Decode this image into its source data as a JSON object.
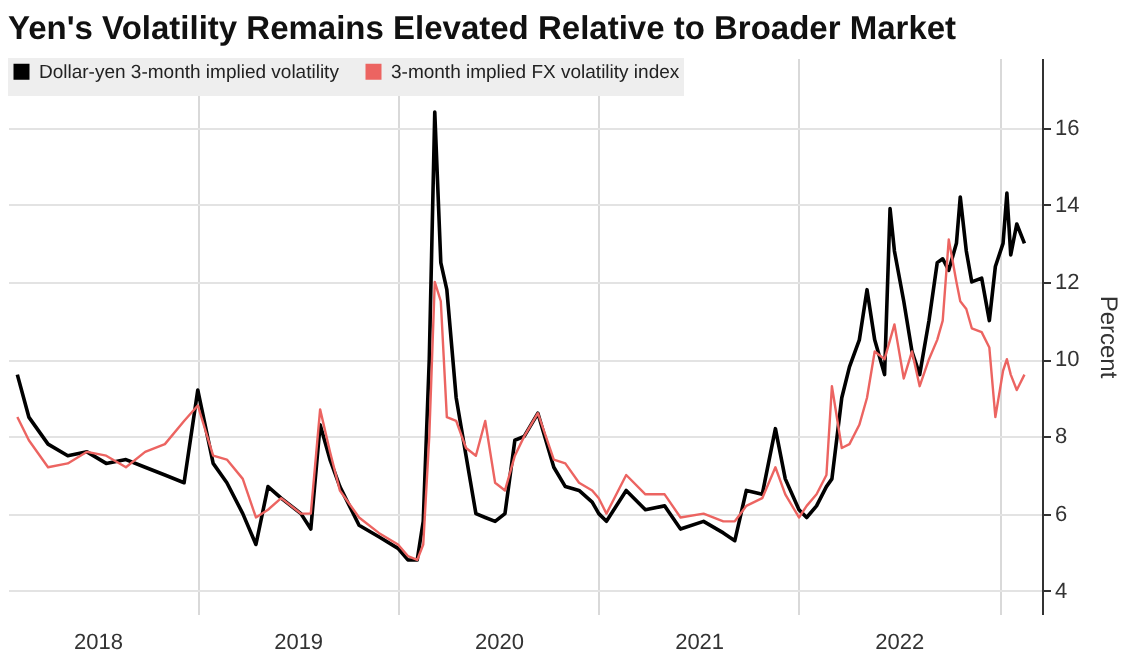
{
  "chart_data": {
    "type": "line",
    "title": "Yen's Volatility Remains Elevated Relative to Broader Market",
    "ylabel": "Percent",
    "x": [
      "2018-02-06",
      "2018-02-27",
      "2018-04-03",
      "2018-05-09",
      "2018-06-13",
      "2018-07-18",
      "2018-08-23",
      "2018-09-27",
      "2018-11-02",
      "2018-12-07",
      "2019-01-01",
      "2019-01-29",
      "2019-02-23",
      "2019-03-24",
      "2019-04-17",
      "2019-05-09",
      "2019-06-02",
      "2019-07-08",
      "2019-07-26",
      "2019-08-12",
      "2019-08-30",
      "2019-09-17",
      "2019-10-22",
      "2019-11-27",
      "2020-01-01",
      "2020-01-19",
      "2020-02-05",
      "2020-02-16",
      "2020-02-27",
      "2020-03-08",
      "2020-03-19",
      "2020-03-30",
      "2020-04-16",
      "2020-05-04",
      "2020-05-22",
      "2020-06-08",
      "2020-06-26",
      "2020-07-14",
      "2020-08-01",
      "2020-08-18",
      "2020-09-12",
      "2020-10-11",
      "2020-11-01",
      "2020-11-26",
      "2020-12-20",
      "2021-01-01",
      "2021-01-15",
      "2021-02-20",
      "2021-03-27",
      "2021-05-01",
      "2021-05-30",
      "2021-07-11",
      "2021-08-16",
      "2021-09-06",
      "2021-09-27",
      "2021-10-26",
      "2021-11-19",
      "2021-12-07",
      "2022-01-01",
      "2022-01-15",
      "2022-02-02",
      "2022-02-20",
      "2022-03-02",
      "2022-03-20",
      "2022-04-03",
      "2022-04-21",
      "2022-05-05",
      "2022-05-19",
      "2022-06-06",
      "2022-06-16",
      "2022-06-24",
      "2022-07-11",
      "2022-07-26",
      "2022-08-09",
      "2022-08-26",
      "2022-09-10",
      "2022-09-20",
      "2022-10-01",
      "2022-10-15",
      "2022-10-22",
      "2022-11-02",
      "2022-11-12",
      "2022-11-30",
      "2022-12-14",
      "2022-12-25",
      "2023-01-08",
      "2023-01-15",
      "2023-01-22",
      "2023-02-02",
      "2023-02-16"
    ],
    "series": [
      {
        "name": "Dollar-yen 3-month implied volatility",
        "color": "#000000",
        "values": [
          9.6,
          8.5,
          7.8,
          7.5,
          7.6,
          7.3,
          7.4,
          7.2,
          7.0,
          6.8,
          9.2,
          7.3,
          6.8,
          6.0,
          5.2,
          6.7,
          6.4,
          6.0,
          5.6,
          8.3,
          7.4,
          6.7,
          5.7,
          5.4,
          5.1,
          4.8,
          4.8,
          5.8,
          10.0,
          16.4,
          12.5,
          11.8,
          9.0,
          7.5,
          6.0,
          5.9,
          5.8,
          6.0,
          7.9,
          8.0,
          8.6,
          7.2,
          6.7,
          6.6,
          6.3,
          6.0,
          5.8,
          6.6,
          6.1,
          6.2,
          5.6,
          5.8,
          5.5,
          5.3,
          6.6,
          6.5,
          8.2,
          6.9,
          6.1,
          5.9,
          6.2,
          6.7,
          6.9,
          9.0,
          9.8,
          10.5,
          11.8,
          10.5,
          9.6,
          13.9,
          12.8,
          11.5,
          10.2,
          9.6,
          11.0,
          12.5,
          12.6,
          12.3,
          13.0,
          14.2,
          12.8,
          12.0,
          12.1,
          11.0,
          12.4,
          13.0,
          14.3,
          12.7,
          13.5,
          13.0
        ]
      },
      {
        "name": "3-month implied FX volatility index",
        "color": "#ec6461",
        "values": [
          8.5,
          7.9,
          7.2,
          7.3,
          7.6,
          7.5,
          7.2,
          7.6,
          7.8,
          8.4,
          8.8,
          7.5,
          7.4,
          6.9,
          5.9,
          6.1,
          6.4,
          6.0,
          6.0,
          8.7,
          7.6,
          6.6,
          5.9,
          5.5,
          5.2,
          4.9,
          4.8,
          5.2,
          8.0,
          12.0,
          11.5,
          8.5,
          8.4,
          7.7,
          7.5,
          8.4,
          6.8,
          6.6,
          7.5,
          8.0,
          8.6,
          7.4,
          7.3,
          6.8,
          6.6,
          6.4,
          6.0,
          7.0,
          6.5,
          6.5,
          5.9,
          6.0,
          5.8,
          5.8,
          6.2,
          6.4,
          7.2,
          6.5,
          5.9,
          6.2,
          6.5,
          7.0,
          9.3,
          7.7,
          7.8,
          8.3,
          9.0,
          10.2,
          10.0,
          10.5,
          10.9,
          9.5,
          10.2,
          9.3,
          10.0,
          10.5,
          11.0,
          13.1,
          12.0,
          11.5,
          11.3,
          10.8,
          10.7,
          10.3,
          8.5,
          9.7,
          10.0,
          9.6,
          9.2,
          9.6
        ]
      }
    ],
    "xlim": [
      "2018-01-20",
      "2023-03-20"
    ],
    "xticks": [
      {
        "value": "2018-07-02",
        "label": "2018"
      },
      {
        "value": "2019-01-01",
        "label": null
      },
      {
        "value": "2019-07-02",
        "label": "2019"
      },
      {
        "value": "2020-01-01",
        "label": null
      },
      {
        "value": "2020-07-02",
        "label": "2020"
      },
      {
        "value": "2021-01-01",
        "label": null
      },
      {
        "value": "2021-07-02",
        "label": "2021"
      },
      {
        "value": "2022-01-01",
        "label": null
      },
      {
        "value": "2022-07-02",
        "label": "2022"
      },
      {
        "value": "2023-01-01",
        "label": null
      }
    ],
    "ylim": [
      3.4,
      17.8
    ],
    "yticks": [
      4,
      6,
      8,
      10,
      12,
      14,
      16
    ],
    "grid": true,
    "legend": "top left"
  }
}
